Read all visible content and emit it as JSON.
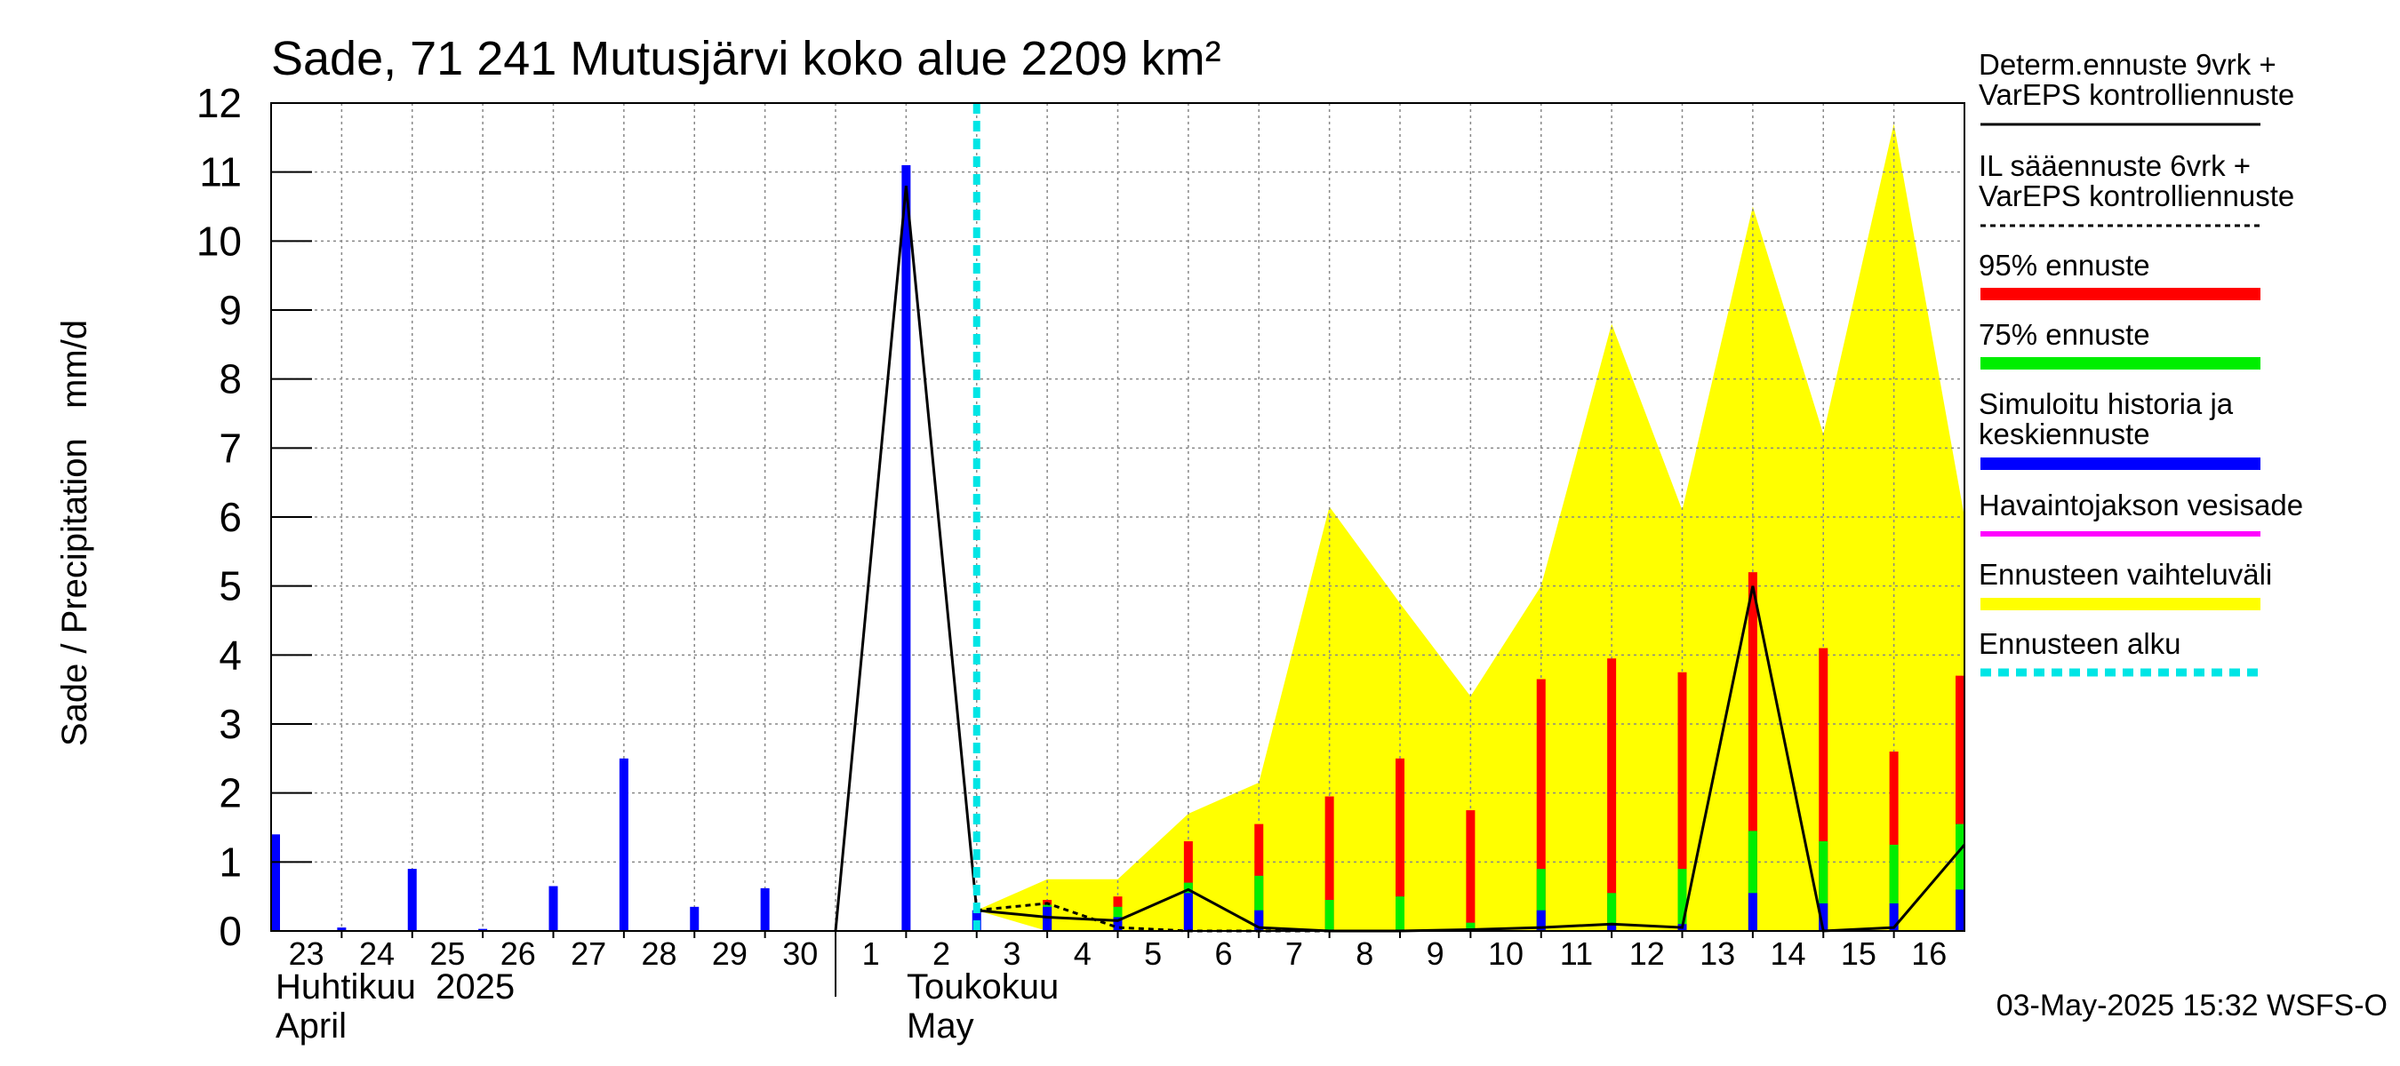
{
  "chart_data": {
    "type": "bar",
    "title": "Sade, 71 241 Mutusjärvi koko alue 2209 km²",
    "ylabel": "Sade / Precipitation   mm/d",
    "ylim": [
      0,
      12
    ],
    "yticks": [
      "0",
      "1",
      "2",
      "3",
      "4",
      "5",
      "6",
      "7",
      "8",
      "9",
      "10",
      "11",
      "12"
    ],
    "x_range_days": [
      0,
      24
    ],
    "day_labels": [
      "23",
      "24",
      "25",
      "26",
      "27",
      "28",
      "29",
      "30",
      "1",
      "2",
      "3",
      "4",
      "5",
      "6",
      "7",
      "8",
      "9",
      "10",
      "11",
      "12",
      "13",
      "14",
      "15",
      "16"
    ],
    "month_labels": {
      "april_fi": "Huhtikuu  2025",
      "april_en": "April",
      "may_fi": "Toukokuu",
      "may_en": "May"
    },
    "month_boundary_day": 8,
    "forecast_start_day": 10,
    "history_bars": [
      {
        "day": 0,
        "value": 1.4
      },
      {
        "day": 1,
        "value": 0.05
      },
      {
        "day": 2,
        "value": 0.9
      },
      {
        "day": 3,
        "value": 0.03
      },
      {
        "day": 4,
        "value": 0.65
      },
      {
        "day": 5,
        "value": 2.5
      },
      {
        "day": 6,
        "value": 0.35
      },
      {
        "day": 7,
        "value": 0.62
      },
      {
        "day": 9,
        "value": 11.1
      },
      {
        "day": 10,
        "value": 0.3
      }
    ],
    "forecast_bars": [
      {
        "day": 11,
        "p95": 0.45,
        "p75": 0.38,
        "median": 0.35
      },
      {
        "day": 12,
        "p95": 0.5,
        "p75": 0.35,
        "median": 0.2
      },
      {
        "day": 13,
        "p95": 1.3,
        "p75": 0.7,
        "median": 0.55
      },
      {
        "day": 14,
        "p95": 1.55,
        "p75": 0.8,
        "median": 0.3
      },
      {
        "day": 15,
        "p95": 1.95,
        "p75": 0.45,
        "median": 0.02
      },
      {
        "day": 16,
        "p95": 2.5,
        "p75": 0.5,
        "median": 0.02
      },
      {
        "day": 17,
        "p95": 1.75,
        "p75": 0.12,
        "median": 0.02
      },
      {
        "day": 18,
        "p95": 3.65,
        "p75": 0.9,
        "median": 0.3
      },
      {
        "day": 19,
        "p95": 3.95,
        "p75": 0.55,
        "median": 0.1
      },
      {
        "day": 20,
        "p95": 3.75,
        "p75": 0.9,
        "median": 0.1
      },
      {
        "day": 21,
        "p95": 5.2,
        "p75": 1.45,
        "median": 0.55
      },
      {
        "day": 22,
        "p95": 4.1,
        "p75": 1.3,
        "median": 0.4
      },
      {
        "day": 23,
        "p95": 2.6,
        "p75": 1.25,
        "median": 0.4
      },
      {
        "day": 24,
        "p95": 3.7,
        "p75": 1.55,
        "median": 0.6
      }
    ],
    "range_band": {
      "days": [
        10,
        11,
        12,
        13,
        14,
        15,
        16,
        17,
        18,
        19,
        20,
        21,
        22,
        23,
        24
      ],
      "upper": [
        0.3,
        0.75,
        0.75,
        1.7,
        2.15,
        6.15,
        4.75,
        3.4,
        5.0,
        8.8,
        6.1,
        10.5,
        7.2,
        11.7,
        6.0
      ],
      "lower": [
        0.3,
        0.0,
        0.0,
        0.0,
        0.0,
        0.0,
        0.0,
        0.0,
        0.0,
        0.0,
        0.0,
        0.0,
        0.0,
        0.0,
        0.0
      ]
    },
    "determ_line": {
      "days": [
        8,
        9,
        10,
        11,
        12,
        13,
        14,
        15,
        16,
        17,
        18,
        19,
        20,
        21,
        22,
        23,
        24
      ],
      "values": [
        0.0,
        10.8,
        0.3,
        0.2,
        0.15,
        0.6,
        0.05,
        0.0,
        0.0,
        0.02,
        0.05,
        0.1,
        0.05,
        5.0,
        0.0,
        0.05,
        1.25
      ]
    },
    "il_line": {
      "days": [
        10,
        11,
        12,
        13,
        14,
        15,
        16
      ],
      "values": [
        0.3,
        0.4,
        0.05,
        0.0,
        0.0,
        0.0,
        0.0
      ]
    },
    "colors": {
      "history": "#0000ff",
      "p95": "#ff0000",
      "p75": "#00ee00",
      "range": "#ffff00",
      "observed": "#ff00ff",
      "forecast_start": "#00e5e5",
      "grid": "#888888"
    },
    "legend": [
      {
        "id": "determ",
        "label1": "Determ.ennuste 9vrk +",
        "label2": "VarEPS kontrolliennuste",
        "style": "solid-thin",
        "color": "#000000"
      },
      {
        "id": "il",
        "label1": "IL sääennuste 6vrk  +",
        "label2": "  VarEPS kontrolliennuste",
        "style": "dashed-thin",
        "color": "#000000"
      },
      {
        "id": "p95",
        "label1": "95% ennuste",
        "style": "thick",
        "color": "#ff0000"
      },
      {
        "id": "p75",
        "label1": "75% ennuste",
        "style": "thick",
        "color": "#00ee00"
      },
      {
        "id": "hist",
        "label1": "Simuloitu historia ja",
        "label2": "keskiennuste",
        "style": "thick",
        "color": "#0000ff"
      },
      {
        "id": "obs",
        "label1": "Havaintojakson vesisade",
        "style": "medium",
        "color": "#ff00ff"
      },
      {
        "id": "range",
        "label1": "Ennusteen vaihteluväli",
        "style": "thick",
        "color": "#ffff00"
      },
      {
        "id": "start",
        "label1": "Ennusteen alku",
        "style": "dashed-thick",
        "color": "#00e5e5"
      }
    ],
    "footer": "03-May-2025 15:32 WSFS-O"
  }
}
